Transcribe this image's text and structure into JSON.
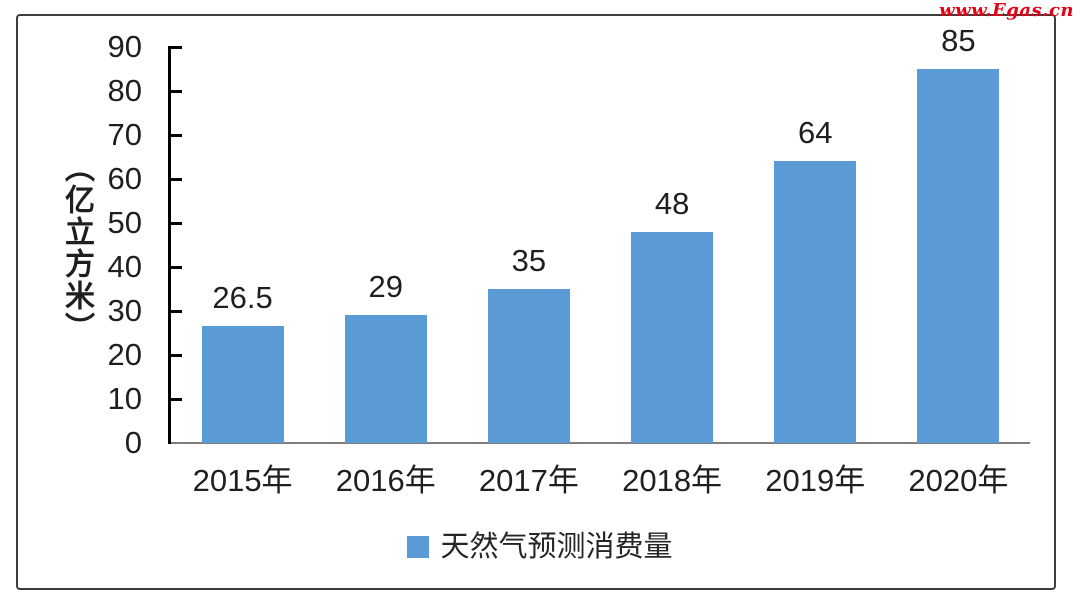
{
  "watermark": {
    "text": "www.Egas.cn",
    "color": "#e60012"
  },
  "chart_data": {
    "type": "bar",
    "title": "",
    "categories": [
      "2015年",
      "2016年",
      "2017年",
      "2018年",
      "2019年",
      "2020年"
    ],
    "values": [
      26.5,
      29,
      35,
      48,
      64,
      85
    ],
    "value_labels": [
      "26.5",
      "29",
      "35",
      "48",
      "64",
      "85"
    ],
    "xlabel": "",
    "ylabel": "（亿立方米）",
    "ylim": [
      0,
      90
    ],
    "yticks": [
      0,
      10,
      20,
      30,
      40,
      50,
      60,
      70,
      80,
      90
    ],
    "grid": false,
    "bar_color": "#5b9bd5",
    "legend": {
      "label": "天然气预测消费量",
      "position": "bottom",
      "marker_color": "#5b9bd5"
    }
  }
}
